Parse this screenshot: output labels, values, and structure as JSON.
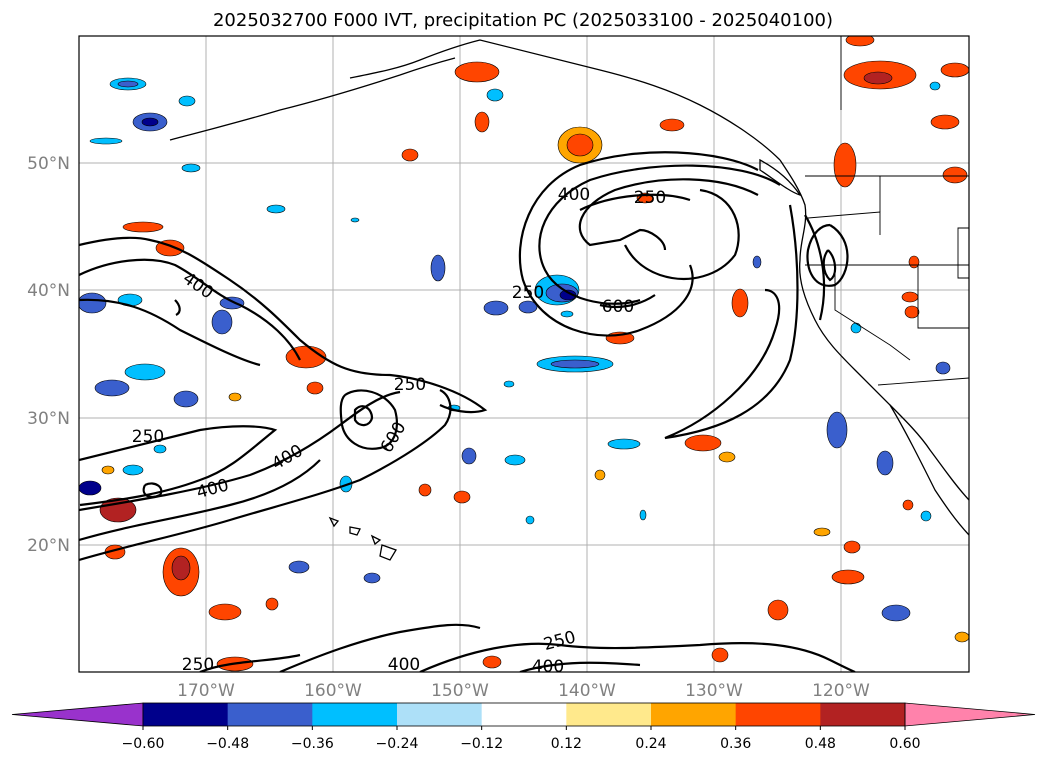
{
  "title": "2025032700 F000 IVT, precipitation PC (2025033100 - 2025040100)",
  "map": {
    "lat_labels": [
      "50°N",
      "40°N",
      "30°N",
      "20°N"
    ],
    "lon_labels": [
      "170°W",
      "160°W",
      "150°W",
      "140°W",
      "130°W",
      "120°W"
    ],
    "extent": {
      "lon": [
        -180,
        -110
      ],
      "lat": [
        10,
        60
      ]
    },
    "gridlines": true
  },
  "ivt_contour_labels": [
    "400",
    "250",
    "250",
    "600",
    "400",
    "250",
    "600",
    "250",
    "400",
    "400",
    "250",
    "400",
    "400",
    "250"
  ],
  "colorbar": {
    "orientation": "horizontal",
    "extend": "both",
    "tick_labels": [
      "−0.60",
      "−0.48",
      "−0.36",
      "−0.24",
      "−0.12",
      "0.12",
      "0.24",
      "0.36",
      "0.48",
      "0.60"
    ],
    "colors": [
      "#9932cc",
      "#00008b",
      "#3a5fcd",
      "#00bfff",
      "#ade0f8",
      "#ffffff",
      "#ffe98c",
      "#ffa500",
      "#ff4500",
      "#b22222",
      "#ff82ab"
    ]
  },
  "colors": {
    "contour": "#000000",
    "grid": "#b0b0b0",
    "coast": "#000000"
  }
}
